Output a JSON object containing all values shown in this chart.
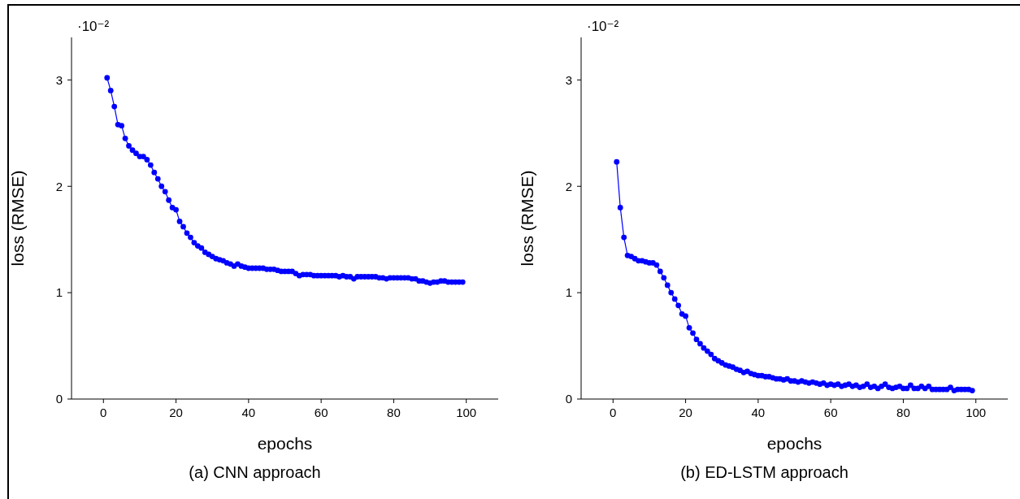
{
  "chart_data": [
    {
      "type": "line",
      "title": "(a) CNN approach",
      "xlabel": "epochs",
      "ylabel": "loss (RMSE)",
      "annotations": [
        "·10⁻²"
      ],
      "xlim": [
        -8.8,
        108.8
      ],
      "xticks": [
        0,
        20,
        40,
        60,
        80,
        100
      ],
      "ylim": [
        0,
        3.4
      ],
      "yticks": [
        0,
        1,
        2,
        3
      ],
      "marker": "circle",
      "line_style": "solid",
      "x": [
        1,
        2,
        3,
        4,
        5,
        6,
        7,
        8,
        9,
        10,
        11,
        12,
        13,
        14,
        15,
        16,
        17,
        18,
        19,
        20,
        21,
        22,
        23,
        24,
        25,
        26,
        27,
        28,
        29,
        30,
        31,
        32,
        33,
        34,
        35,
        36,
        37,
        38,
        39,
        40,
        41,
        42,
        43,
        44,
        45,
        46,
        47,
        48,
        49,
        50,
        51,
        52,
        53,
        54,
        55,
        56,
        57,
        58,
        59,
        60,
        61,
        62,
        63,
        64,
        65,
        66,
        67,
        68,
        69,
        70,
        71,
        72,
        73,
        74,
        75,
        76,
        77,
        78,
        79,
        80,
        81,
        82,
        83,
        84,
        85,
        86,
        87,
        88,
        89,
        90,
        91,
        92,
        93,
        94,
        95,
        96,
        97,
        98,
        99
      ],
      "series": [
        {
          "color": "#0000ff",
          "values": [
            3.02,
            2.9,
            2.75,
            2.58,
            2.57,
            2.45,
            2.38,
            2.34,
            2.31,
            2.28,
            2.28,
            2.25,
            2.2,
            2.13,
            2.07,
            2.0,
            1.95,
            1.87,
            1.8,
            1.78,
            1.67,
            1.62,
            1.56,
            1.52,
            1.47,
            1.44,
            1.42,
            1.38,
            1.36,
            1.34,
            1.32,
            1.31,
            1.3,
            1.28,
            1.27,
            1.25,
            1.27,
            1.25,
            1.24,
            1.23,
            1.23,
            1.23,
            1.23,
            1.23,
            1.22,
            1.22,
            1.22,
            1.21,
            1.2,
            1.2,
            1.2,
            1.2,
            1.18,
            1.16,
            1.17,
            1.17,
            1.17,
            1.16,
            1.16,
            1.16,
            1.16,
            1.16,
            1.16,
            1.16,
            1.15,
            1.16,
            1.15,
            1.15,
            1.13,
            1.15,
            1.15,
            1.15,
            1.15,
            1.15,
            1.15,
            1.14,
            1.14,
            1.13,
            1.14,
            1.14,
            1.14,
            1.14,
            1.14,
            1.14,
            1.13,
            1.13,
            1.11,
            1.11,
            1.1,
            1.09,
            1.1,
            1.1,
            1.11,
            1.11,
            1.1,
            1.1,
            1.1,
            1.1,
            1.1
          ]
        }
      ]
    },
    {
      "type": "line",
      "title": "(b) ED-LSTM approach",
      "xlabel": "epochs",
      "ylabel": "loss (RMSE)",
      "annotations": [
        "·10⁻²"
      ],
      "xlim": [
        -8.8,
        108.8
      ],
      "xticks": [
        0,
        20,
        40,
        60,
        80,
        100
      ],
      "ylim": [
        0,
        3.4
      ],
      "yticks": [
        0,
        1,
        2,
        3
      ],
      "marker": "circle",
      "line_style": "solid",
      "x": [
        1,
        2,
        3,
        4,
        5,
        6,
        7,
        8,
        9,
        10,
        11,
        12,
        13,
        14,
        15,
        16,
        17,
        18,
        19,
        20,
        21,
        22,
        23,
        24,
        25,
        26,
        27,
        28,
        29,
        30,
        31,
        32,
        33,
        34,
        35,
        36,
        37,
        38,
        39,
        40,
        41,
        42,
        43,
        44,
        45,
        46,
        47,
        48,
        49,
        50,
        51,
        52,
        53,
        54,
        55,
        56,
        57,
        58,
        59,
        60,
        61,
        62,
        63,
        64,
        65,
        66,
        67,
        68,
        69,
        70,
        71,
        72,
        73,
        74,
        75,
        76,
        77,
        78,
        79,
        80,
        81,
        82,
        83,
        84,
        85,
        86,
        87,
        88,
        89,
        90,
        91,
        92,
        93,
        94,
        95,
        96,
        97,
        98,
        99
      ],
      "series": [
        {
          "color": "#0000ff",
          "values": [
            2.23,
            1.8,
            1.52,
            1.35,
            1.34,
            1.32,
            1.3,
            1.3,
            1.29,
            1.28,
            1.28,
            1.26,
            1.2,
            1.14,
            1.07,
            1.0,
            0.94,
            0.88,
            0.8,
            0.78,
            0.67,
            0.62,
            0.56,
            0.52,
            0.48,
            0.45,
            0.42,
            0.38,
            0.36,
            0.34,
            0.32,
            0.31,
            0.3,
            0.28,
            0.27,
            0.25,
            0.26,
            0.24,
            0.23,
            0.22,
            0.22,
            0.21,
            0.21,
            0.2,
            0.19,
            0.19,
            0.18,
            0.19,
            0.17,
            0.17,
            0.16,
            0.17,
            0.16,
            0.15,
            0.16,
            0.15,
            0.14,
            0.15,
            0.13,
            0.14,
            0.13,
            0.14,
            0.12,
            0.13,
            0.14,
            0.12,
            0.13,
            0.11,
            0.12,
            0.14,
            0.11,
            0.12,
            0.1,
            0.12,
            0.14,
            0.11,
            0.1,
            0.11,
            0.12,
            0.1,
            0.1,
            0.13,
            0.1,
            0.1,
            0.12,
            0.1,
            0.12,
            0.09,
            0.09,
            0.09,
            0.09,
            0.09,
            0.11,
            0.08,
            0.09,
            0.09,
            0.09,
            0.09,
            0.08
          ]
        }
      ]
    }
  ]
}
